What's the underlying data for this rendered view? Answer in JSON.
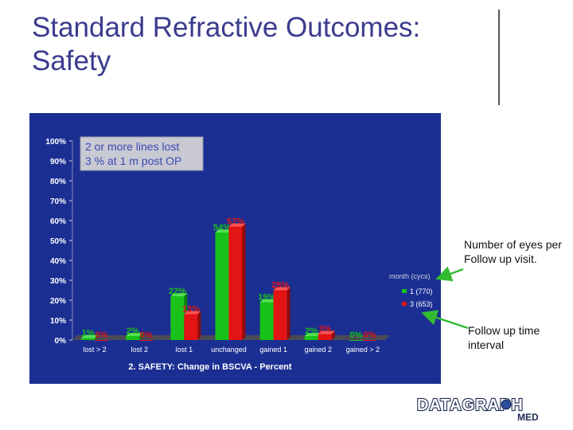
{
  "slide": {
    "title": "Standard Refractive Outcomes: Safety",
    "note_followup": "Number of eyes per Follow up visit.",
    "note_interval": "Follow up time interval",
    "logo_text": "DATAGRAPH",
    "logo_sub": "MED"
  },
  "colors": {
    "chart_bg": "#1b2f93",
    "series1": "#19c219",
    "series2": "#e31414",
    "title": "#3b3b8f",
    "arrow": "#33bb33"
  },
  "chart_data": {
    "type": "bar",
    "title": "2. SAFETY: Change in BSCVA - Percent",
    "xlabel": "2. SAFETY: Change in BSCVA - Percent",
    "ylabel": "",
    "ylim": [
      0,
      100
    ],
    "yticks": [
      "0%",
      "10%",
      "20%",
      "30%",
      "40%",
      "50%",
      "60%",
      "70%",
      "80%",
      "90%",
      "100%"
    ],
    "categories": [
      "lost > 2",
      "lost 2",
      "lost 1",
      "unchanged",
      "gained 1",
      "gained 2",
      "gained > 2"
    ],
    "series": [
      {
        "name": "1 (770)",
        "values": [
          1,
          2,
          22,
          54,
          19,
          2,
          0
        ]
      },
      {
        "name": "3 (653)",
        "values": [
          0,
          0,
          13,
          57,
          25,
          3,
          0
        ]
      }
    ],
    "data_labels": [
      [
        "1%",
        "2%",
        "22%",
        "54%",
        "19%",
        "2%",
        "0%"
      ],
      [
        "0%",
        "0%",
        "13%",
        "57%",
        "25%",
        "3%",
        "0%"
      ]
    ],
    "legend_title": "month (cycs)",
    "legend_position": "right",
    "annotation": {
      "line1": "2 or more lines lost",
      "line2": "3 % at 1 m post OP"
    }
  }
}
